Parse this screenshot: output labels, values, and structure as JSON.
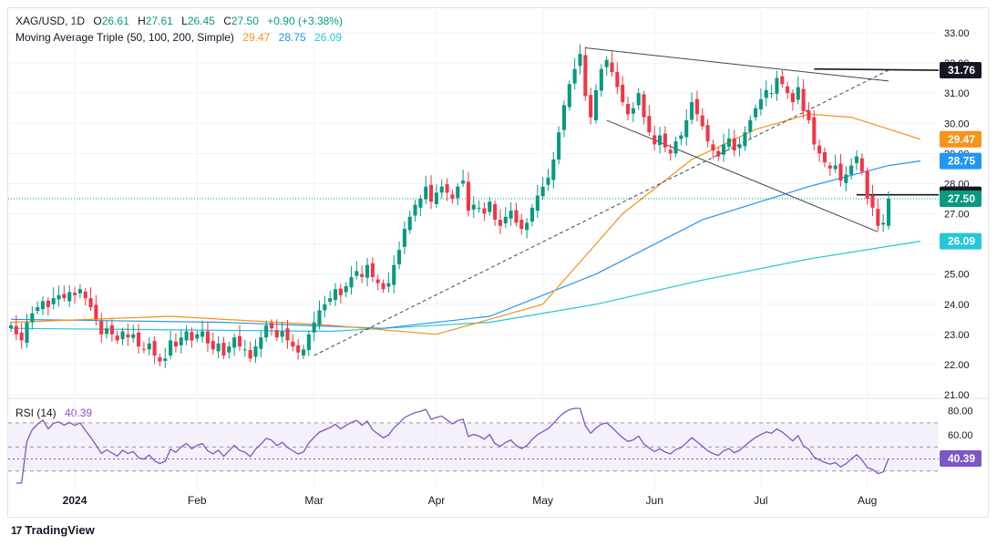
{
  "legend": {
    "symbol": "XAG/USD, 1D",
    "open_label": "O",
    "open": "26.61",
    "high_label": "H",
    "high": "27.61",
    "low_label": "L",
    "low": "26.45",
    "close_label": "C",
    "close": "27.50",
    "change": "+0.90 (+3.38%)",
    "ma_title": "Moving Average Triple (50, 100, 200, Simple)",
    "ma50": "29.47",
    "ma100": "28.75",
    "ma200": "26.09"
  },
  "rsi_legend": {
    "title": "RSI (14)",
    "value": "40.39"
  },
  "brand": {
    "logo": "17",
    "name": "TradingView"
  },
  "colors": {
    "up": "#089981",
    "down": "#f23645",
    "ma50": "#f7931a",
    "ma100": "#2196f3",
    "ma200": "#26c6da",
    "rsi": "#7e57c2",
    "rsi_band": "#ede7f6",
    "trendline": "#434651"
  },
  "chart_data": [
    {
      "type": "candlestick",
      "title": "XAG/USD, 1D",
      "y_ticks": [
        "33.00",
        "32.00",
        "31.00",
        "30.00",
        "29.00",
        "28.00",
        "27.00",
        "26.00",
        "25.00",
        "24.00",
        "23.00",
        "22.00",
        "21.00"
      ],
      "x_ticks": [
        "2024",
        "Feb",
        "Mar",
        "Apr",
        "May",
        "Jun",
        "Jul",
        "Aug"
      ],
      "ylim": [
        21,
        33
      ],
      "price_labels": [
        {
          "text": "31.76",
          "value": 31.76,
          "kind": "level"
        },
        {
          "text": "29.47",
          "value": 29.47,
          "kind": "ma50"
        },
        {
          "text": "28.75",
          "value": 28.75,
          "kind": "ma100"
        },
        {
          "text": "27.63",
          "value": 27.63,
          "kind": "level"
        },
        {
          "text": "27.50",
          "value": 27.5,
          "kind": "close"
        },
        {
          "text": "26.09",
          "value": 26.09,
          "kind": "ma200"
        }
      ],
      "closes": [
        23.3,
        23.0,
        22.8,
        23.4,
        23.7,
        23.9,
        24.1,
        23.9,
        24.2,
        24.3,
        24.2,
        24.4,
        24.3,
        24.5,
        24.2,
        23.9,
        23.5,
        23.0,
        23.2,
        23.0,
        22.8,
        23.1,
        22.9,
        23.0,
        22.6,
        22.5,
        22.7,
        22.3,
        22.1,
        22.2,
        22.8,
        22.6,
        22.9,
        23.1,
        22.8,
        23.0,
        23.1,
        22.7,
        22.5,
        22.7,
        22.3,
        22.6,
        22.9,
        22.6,
        22.5,
        22.2,
        22.6,
        22.9,
        23.3,
        23.2,
        22.9,
        23.1,
        22.8,
        22.6,
        22.4,
        22.5,
        23.0,
        23.4,
        23.8,
        24.0,
        24.2,
        24.5,
        24.3,
        24.6,
        24.9,
        25.1,
        24.9,
        25.3,
        24.9,
        24.7,
        24.5,
        24.7,
        25.3,
        25.8,
        26.5,
        26.9,
        27.3,
        27.5,
        27.9,
        27.4,
        27.7,
        27.9,
        27.7,
        27.5,
        27.9,
        28.1,
        27.1,
        27.3,
        27.2,
        27.0,
        27.4,
        26.8,
        26.6,
        26.9,
        27.1,
        26.7,
        26.5,
        26.7,
        27.2,
        27.6,
        27.9,
        28.2,
        28.8,
        29.7,
        30.6,
        31.3,
        31.8,
        32.3,
        30.9,
        30.2,
        31.1,
        31.8,
        32.1,
        31.7,
        31.2,
        30.7,
        30.3,
        30.5,
        31.0,
        30.2,
        29.7,
        29.3,
        29.6,
        29.2,
        29.0,
        29.4,
        29.6,
        30.1,
        30.7,
        30.3,
        29.9,
        29.4,
        29.1,
        28.9,
        29.3,
        29.5,
        29.1,
        29.3,
        29.7,
        30.1,
        30.5,
        30.8,
        31.1,
        31.0,
        31.5,
        31.3,
        31.0,
        30.7,
        31.2,
        30.4,
        30.1,
        29.3,
        29.0,
        28.7,
        28.5,
        28.6,
        28.1,
        28.3,
        28.6,
        28.9,
        28.4,
        27.5,
        27.2,
        26.6,
        26.7,
        27.5
      ],
      "ma50_anchors": [
        [
          0,
          23.4
        ],
        [
          30,
          23.6
        ],
        [
          60,
          23.3
        ],
        [
          80,
          23.0
        ],
        [
          100,
          24.0
        ],
        [
          115,
          27.0
        ],
        [
          128,
          28.8
        ],
        [
          140,
          29.8
        ],
        [
          150,
          30.3
        ],
        [
          158,
          30.2
        ],
        [
          171,
          29.47
        ]
      ],
      "ma100_anchors": [
        [
          0,
          23.5
        ],
        [
          40,
          23.4
        ],
        [
          70,
          23.2
        ],
        [
          90,
          23.6
        ],
        [
          110,
          25.0
        ],
        [
          130,
          26.8
        ],
        [
          150,
          27.9
        ],
        [
          165,
          28.6
        ],
        [
          171,
          28.75
        ]
      ],
      "ma200_anchors": [
        [
          0,
          23.2
        ],
        [
          60,
          23.1
        ],
        [
          90,
          23.4
        ],
        [
          110,
          24.0
        ],
        [
          130,
          24.8
        ],
        [
          150,
          25.5
        ],
        [
          171,
          26.09
        ]
      ],
      "trendlines": [
        {
          "from": [
            57,
            22.3
          ],
          "to": [
            165,
            31.76
          ],
          "style": "dashed"
        },
        {
          "from": [
            108,
            32.5
          ],
          "to": [
            165,
            31.4
          ],
          "style": "solid"
        },
        {
          "from": [
            112,
            30.1
          ],
          "to": [
            163,
            26.4
          ],
          "style": "solid"
        },
        {
          "from": [
            151,
            31.8
          ],
          "to": [
            171,
            31.76
          ],
          "style": "solid-bold"
        },
        {
          "from": [
            159,
            27.63
          ],
          "to": [
            171,
            27.63
          ],
          "style": "solid-bold"
        }
      ]
    },
    {
      "type": "line",
      "title": "RSI (14)",
      "y_ticks": [
        "80.00",
        "60.00",
        "40.39"
      ],
      "ylim": [
        20,
        82
      ],
      "bands": [
        70,
        50,
        40,
        30
      ],
      "value": 40.39
    }
  ]
}
